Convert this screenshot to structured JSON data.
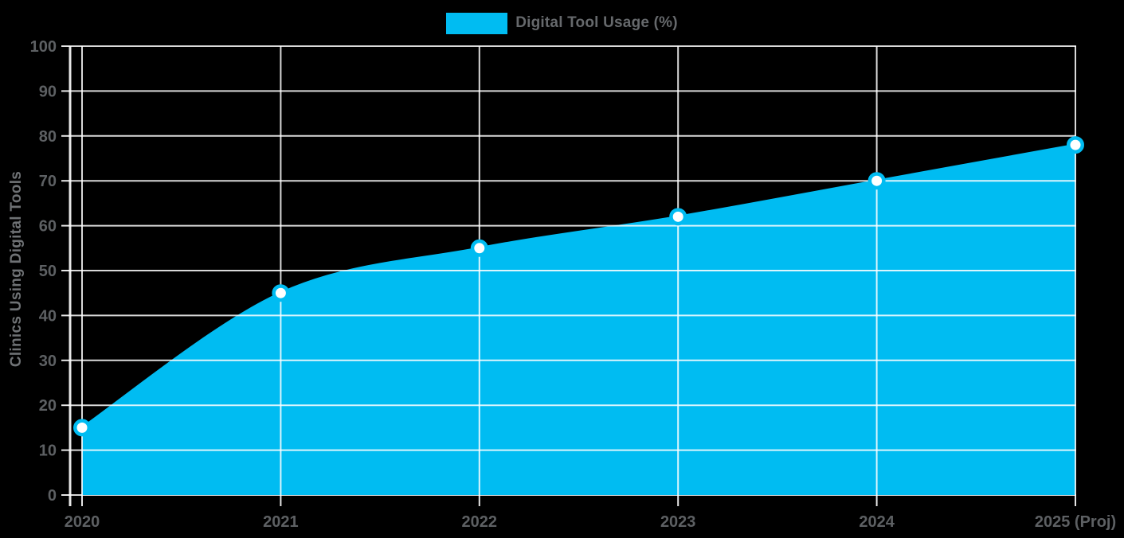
{
  "legend": {
    "label": "Digital Tool Usage (%)"
  },
  "y_axis_title": "Clinics Using Digital Tools",
  "chart_data": {
    "type": "area",
    "title": "",
    "categories": [
      "2020",
      "2021",
      "2022",
      "2023",
      "2024",
      "2025 (Proj)"
    ],
    "series": [
      {
        "name": "Digital Tool Usage (%)",
        "values": [
          15,
          45,
          55,
          62,
          70,
          78
        ]
      }
    ],
    "xlabel": "",
    "ylabel": "Clinics Using Digital Tools",
    "ylim": [
      0,
      100
    ],
    "y_ticks": [
      0,
      10,
      20,
      30,
      40,
      50,
      60,
      70,
      80,
      90,
      100
    ],
    "grid": true,
    "legend_position": "top",
    "curve": "smooth",
    "background": "#000000",
    "colors": {
      "fill": "#00bcf2",
      "line": "#00bcf2",
      "marker_fill": "#ffffff",
      "marker_border": "#00bcf2",
      "gridline": "rgba(255,255,255,0.85)",
      "axis": "rgba(255,255,255,0.9)",
      "tick_label": "#5d6063",
      "legend_label": "#66696c",
      "axis_title": "#6f7275"
    }
  }
}
